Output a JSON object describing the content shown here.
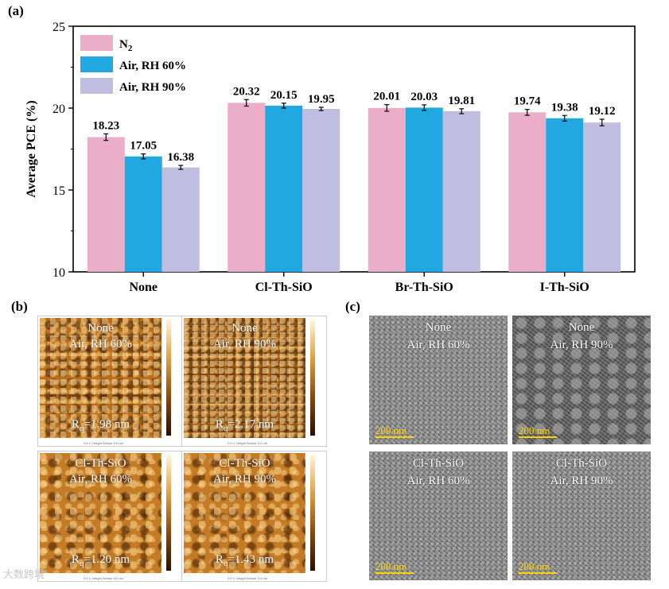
{
  "panel_labels": {
    "a": "(a)",
    "b": "(b)",
    "c": "(c)"
  },
  "chart_data": {
    "type": "bar",
    "title": "",
    "xlabel": "",
    "ylabel": "Average PCE (%)",
    "ylim": [
      10,
      25
    ],
    "yticks": [
      10,
      15,
      20,
      25
    ],
    "categories": [
      "None",
      "Cl-Th-SiO",
      "Br-Th-SiO",
      "I-Th-SiO"
    ],
    "legend_position": "top-left",
    "series": [
      {
        "name": "N2",
        "legend_main": "N",
        "legend_sub": "2",
        "color": "#eaaec8",
        "values": [
          18.23,
          20.32,
          20.01,
          19.74
        ],
        "errors": [
          0.2,
          0.2,
          0.2,
          0.18
        ],
        "labels": [
          "18.23",
          "20.32",
          "20.01",
          "19.74"
        ]
      },
      {
        "name": "Air, RH 60%",
        "color": "#21a8e0",
        "values": [
          17.05,
          20.15,
          20.03,
          19.38
        ],
        "errors": [
          0.15,
          0.15,
          0.17,
          0.17
        ],
        "labels": [
          "17.05",
          "20.15",
          "20.03",
          "19.38"
        ]
      },
      {
        "name": "Air, RH 90%",
        "color": "#bfbde0",
        "values": [
          16.38,
          19.95,
          19.81,
          19.12
        ],
        "errors": [
          0.12,
          0.1,
          0.15,
          0.2
        ],
        "labels": [
          "16.38",
          "19.95",
          "19.81",
          "19.12"
        ]
      }
    ]
  },
  "afm": [
    {
      "line1": "None",
      "line2": "Air, RH 60%",
      "rq_prefix": "R",
      "rq_sub": "q",
      "rq_value": "=1.98 nm",
      "texture": "normal"
    },
    {
      "line1": "None",
      "line2": "Air, RH 90%",
      "rq_prefix": "R",
      "rq_sub": "q",
      "rq_value": "=2.17 nm",
      "texture": "rough"
    },
    {
      "line1": "Cl-Th-SiO",
      "line2": "Air, RH 60%",
      "rq_prefix": "R",
      "rq_sub": "q",
      "rq_value": "=1.20 nm",
      "texture": "smooth"
    },
    {
      "line1": "Cl-Th-SiO",
      "line2": "Air, RH 90%",
      "rq_prefix": "R",
      "rq_sub": "q",
      "rq_value": "=1.43 nm",
      "texture": "smooth"
    }
  ],
  "afm_axis": {
    "left": "0.0",
    "mid": "1: Height Sensor",
    "right": "5.0 um"
  },
  "sem": [
    {
      "line1": "None",
      "line2": "Air, RH 60%",
      "scale": "200 nm",
      "texture": "normal"
    },
    {
      "line1": "None",
      "line2": "Air, RH 90%",
      "scale": "200 nm",
      "texture": "cracked"
    },
    {
      "line1": "Cl-Th-SiO",
      "line2": "Air, RH 60%",
      "scale": "200 nm",
      "texture": "normal"
    },
    {
      "line1": "Cl-Th-SiO",
      "line2": "Air, RH 90%",
      "scale": "200 nm",
      "texture": "normal"
    }
  ],
  "watermark": "大数跨境"
}
